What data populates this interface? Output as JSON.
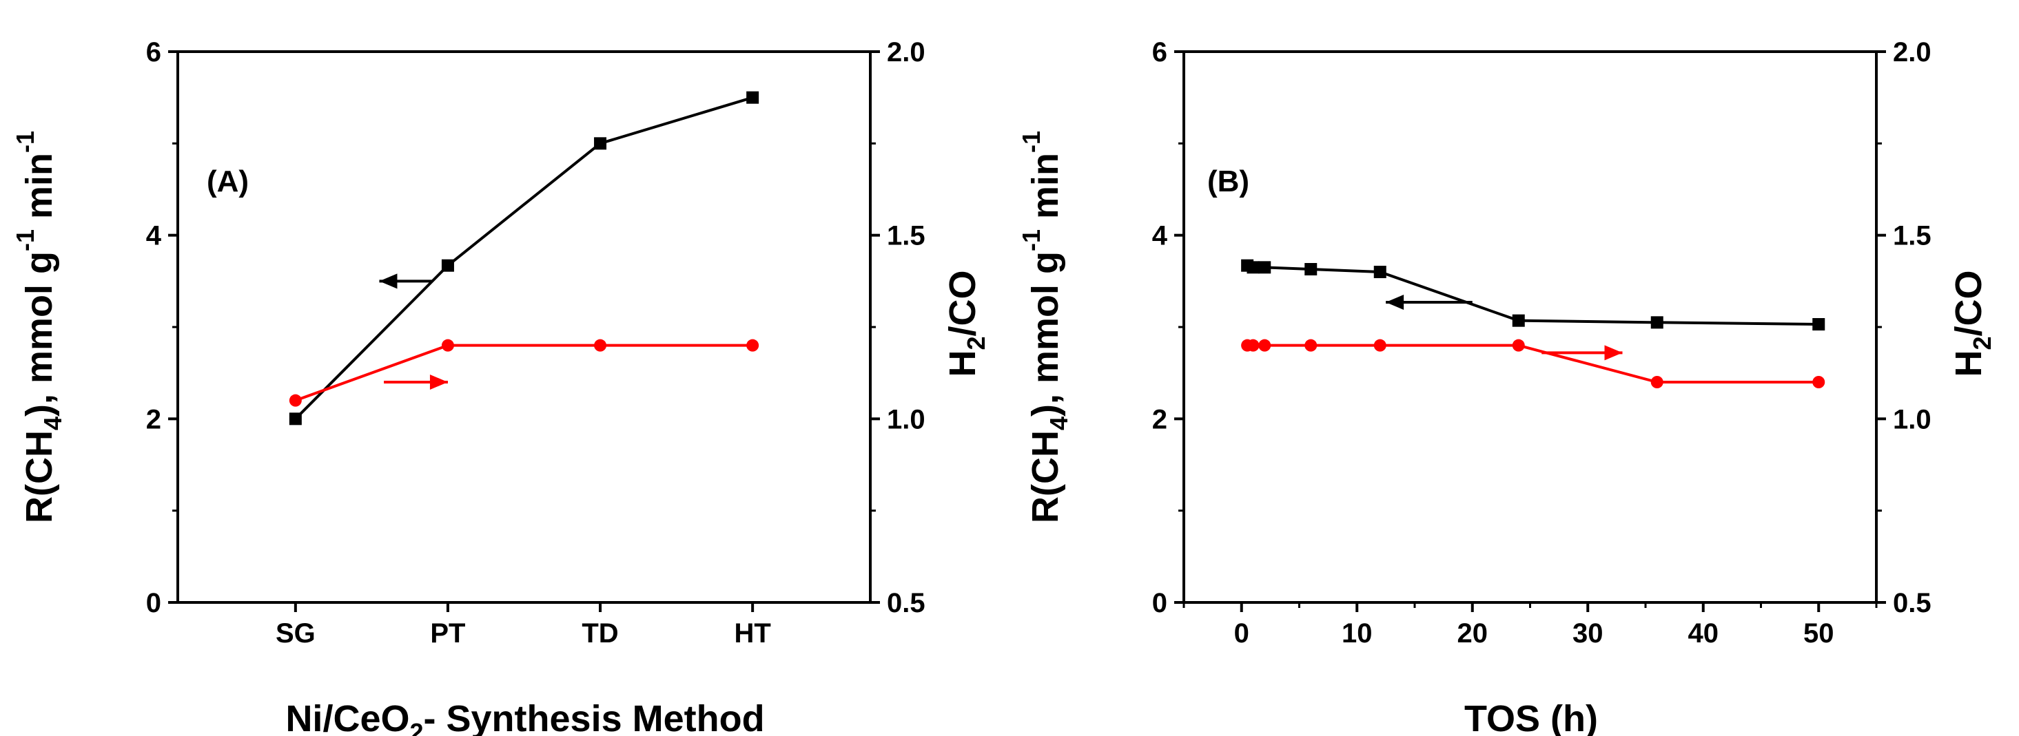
{
  "chart_data": [
    {
      "id": "A",
      "type": "line",
      "panel_label": "(A)",
      "xlabel": {
        "pre": "Ni/CeO",
        "sub": "2",
        "post": "- Synthesis Method"
      },
      "ylabel_left": {
        "p1": "R(CH",
        "s1": "4",
        "p2": "), mmol g",
        "sup": "-1",
        "p3": " min",
        "sup2": "-1"
      },
      "ylabel_right": {
        "p1": "H",
        "s1": "2",
        "p2": "/CO"
      },
      "categories": [
        "SG",
        "PT",
        "TD",
        "HT"
      ],
      "ylim_left": [
        0,
        6
      ],
      "yticks_left": [
        "0",
        "2",
        "4",
        "6"
      ],
      "ylim_right": [
        0.5,
        2.0
      ],
      "yticks_right": [
        "0.5",
        "1.0",
        "1.5",
        "2.0"
      ],
      "series": [
        {
          "name": "R(CH4)",
          "axis": "left",
          "color": "#000000",
          "marker": "square",
          "values": [
            2.0,
            3.67,
            5.0,
            5.5
          ]
        },
        {
          "name": "H2/CO",
          "axis": "right",
          "color": "#ff0000",
          "marker": "circle",
          "values": [
            1.05,
            1.2,
            1.2,
            1.2
          ]
        }
      ],
      "arrows": [
        {
          "color": "#000000",
          "direction": "left",
          "x_from": 0.9,
          "x_to": 0.55,
          "y": 3.5,
          "axis": "left"
        },
        {
          "color": "#ff0000",
          "direction": "right",
          "x_from": 0.58,
          "x_to": 1.0,
          "y": 1.1,
          "axis": "right"
        }
      ]
    },
    {
      "id": "B",
      "type": "line",
      "panel_label": "(B)",
      "xlabel": {
        "pre": "TOS (h)",
        "sub": "",
        "post": ""
      },
      "ylabel_left": {
        "p1": "R(CH",
        "s1": "4",
        "p2": "), mmol g",
        "sup": "-1",
        "p3": " min",
        "sup2": "-1"
      },
      "ylabel_right": {
        "p1": "H",
        "s1": "2",
        "p2": "/CO"
      },
      "xlim": [
        -5,
        55
      ],
      "xticks": [
        "0",
        "10",
        "20",
        "30",
        "40",
        "50"
      ],
      "ylim_left": [
        0,
        6
      ],
      "yticks_left": [
        "0",
        "2",
        "4",
        "6"
      ],
      "ylim_right": [
        0.5,
        2.0
      ],
      "yticks_right": [
        "0.5",
        "1.0",
        "1.5",
        "2.0"
      ],
      "series": [
        {
          "name": "R(CH4)",
          "axis": "left",
          "color": "#000000",
          "marker": "square",
          "x": [
            0.5,
            1,
            2,
            6,
            12,
            24,
            36,
            50
          ],
          "values": [
            3.67,
            3.65,
            3.65,
            3.63,
            3.6,
            3.07,
            3.05,
            3.03
          ]
        },
        {
          "name": "H2/CO",
          "axis": "right",
          "color": "#ff0000",
          "marker": "circle",
          "x": [
            0.5,
            1,
            2,
            6,
            12,
            24,
            36,
            50
          ],
          "values": [
            1.2,
            1.2,
            1.2,
            1.2,
            1.2,
            1.2,
            1.1,
            1.1
          ]
        }
      ],
      "arrows": [
        {
          "color": "#000000",
          "direction": "left",
          "x_from": 20,
          "x_to": 12.5,
          "y": 3.27,
          "axis": "left"
        },
        {
          "color": "#ff0000",
          "direction": "right",
          "x_from": 26,
          "x_to": 33,
          "y": 1.18,
          "axis": "right"
        }
      ]
    }
  ]
}
